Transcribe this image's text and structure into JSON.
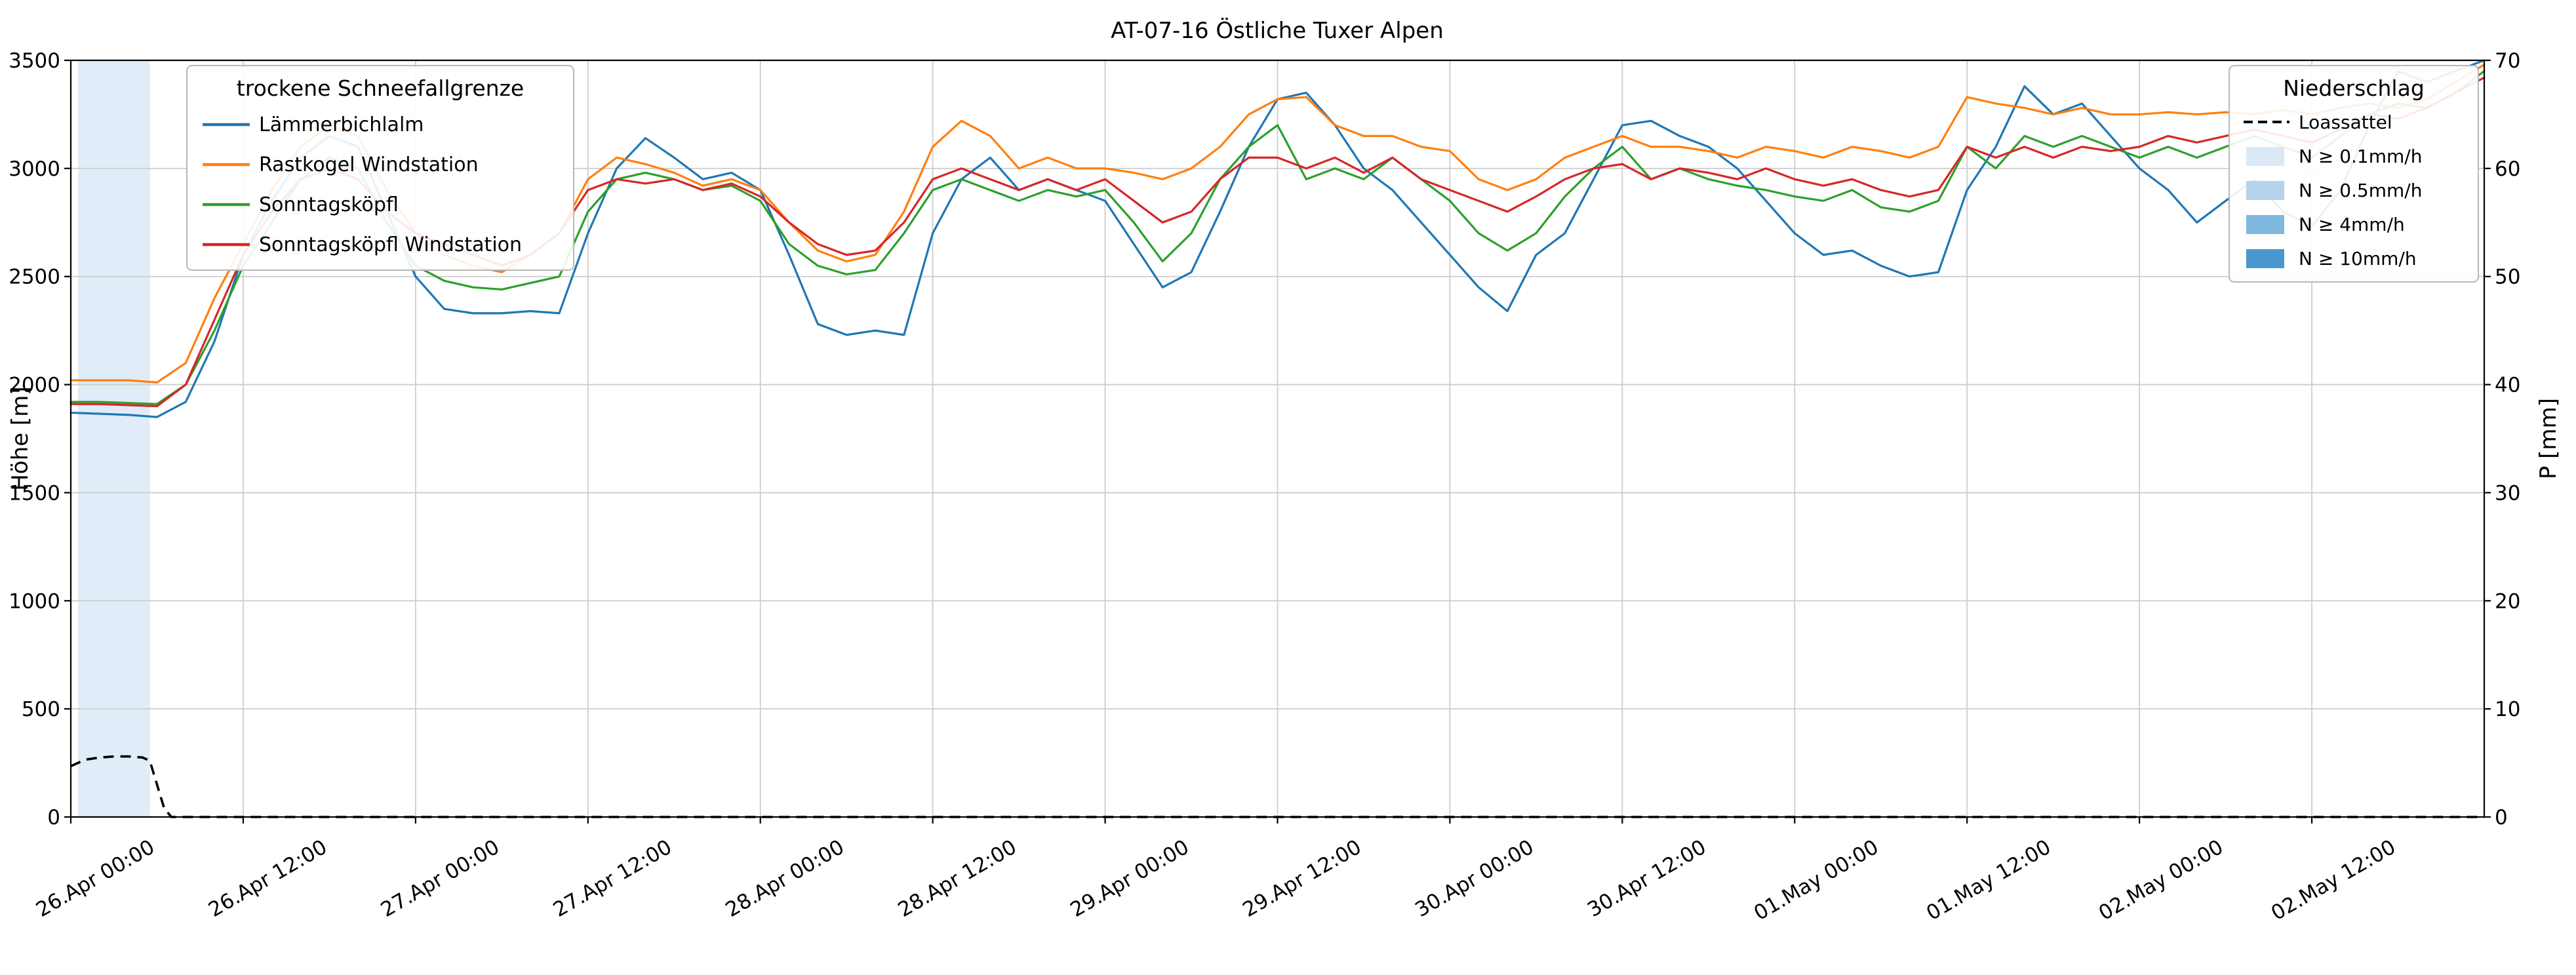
{
  "chart_data": {
    "type": "line",
    "title": "AT-07-16 Östliche Tuxer Alpen",
    "x_unit": "hours since 26.Apr 00:00",
    "x_range": [
      0,
      168
    ],
    "grid": true,
    "x_ticks": [
      {
        "h": 0,
        "label": "26.Apr 00:00"
      },
      {
        "h": 12,
        "label": "26.Apr 12:00"
      },
      {
        "h": 24,
        "label": "27.Apr 00:00"
      },
      {
        "h": 36,
        "label": "27.Apr 12:00"
      },
      {
        "h": 48,
        "label": "28.Apr 00:00"
      },
      {
        "h": 60,
        "label": "28.Apr 12:00"
      },
      {
        "h": 72,
        "label": "29.Apr 00:00"
      },
      {
        "h": 84,
        "label": "29.Apr 12:00"
      },
      {
        "h": 96,
        "label": "30.Apr 00:00"
      },
      {
        "h": 108,
        "label": "30.Apr 12:00"
      },
      {
        "h": 120,
        "label": "01.May 00:00"
      },
      {
        "h": 132,
        "label": "01.May 12:00"
      },
      {
        "h": 144,
        "label": "02.May 00:00"
      },
      {
        "h": 156,
        "label": "02.May 12:00"
      }
    ],
    "y_left": {
      "label": "Höhe [m]",
      "range": [
        0,
        3500
      ],
      "ticks": [
        0,
        500,
        1000,
        1500,
        2000,
        2500,
        3000,
        3500
      ]
    },
    "y_right": {
      "label": "P [mm]",
      "range": [
        0,
        70
      ],
      "ticks": [
        0,
        10,
        20,
        30,
        40,
        50,
        60,
        70
      ]
    },
    "series": [
      {
        "name": "Lämmerbichlalm",
        "color": "#1f77b4",
        "axis": "left",
        "h_start": 0,
        "h_step": 2,
        "values": [
          1870,
          1865,
          1860,
          1850,
          1920,
          2200,
          2600,
          2850,
          3050,
          3150,
          3100,
          2800,
          2500,
          2350,
          2330,
          2330,
          2340,
          2330,
          2700,
          3000,
          3140,
          3050,
          2950,
          2980,
          2900,
          2600,
          2280,
          2230,
          2250,
          2230,
          2700,
          2950,
          3050,
          2900,
          2950,
          2900,
          2850,
          2650,
          2450,
          2520,
          2800,
          3100,
          3320,
          3350,
          3200,
          3000,
          2900,
          2750,
          2600,
          2450,
          2340,
          2600,
          2700,
          2950,
          3200,
          3220,
          3150,
          3100,
          3000,
          2850,
          2700,
          2600,
          2620,
          2550,
          2500,
          2520,
          2900,
          3100,
          3380,
          3250,
          3300,
          3150,
          3000,
          2900,
          2750,
          2850,
          2950,
          2800,
          2730,
          2900,
          3200,
          3450,
          3400,
          3450,
          3500
        ]
      },
      {
        "name": "Rastkogel Windstation",
        "color": "#ff7f0e",
        "axis": "left",
        "h_start": 0,
        "h_step": 2,
        "values": [
          2020,
          2020,
          2020,
          2010,
          2100,
          2400,
          2650,
          2900,
          3100,
          3200,
          3150,
          2900,
          2700,
          2600,
          2550,
          2520,
          2600,
          2700,
          2950,
          3050,
          3020,
          2980,
          2920,
          2950,
          2900,
          2750,
          2620,
          2570,
          2600,
          2800,
          3100,
          3220,
          3150,
          3000,
          3050,
          3000,
          3000,
          2980,
          2950,
          3000,
          3100,
          3250,
          3320,
          3330,
          3200,
          3150,
          3150,
          3100,
          3080,
          2950,
          2900,
          2950,
          3050,
          3100,
          3150,
          3100,
          3100,
          3080,
          3050,
          3100,
          3080,
          3050,
          3100,
          3080,
          3050,
          3100,
          3330,
          3300,
          3280,
          3250,
          3280,
          3250,
          3250,
          3260,
          3250,
          3260,
          3250,
          3270,
          3250,
          3280,
          3300,
          3280,
          3320,
          3400,
          3480
        ]
      },
      {
        "name": "Sonntagsköpfl",
        "color": "#2ca02c",
        "axis": "left",
        "h_start": 0,
        "h_step": 2,
        "values": [
          1920,
          1920,
          1915,
          1910,
          2000,
          2250,
          2550,
          2750,
          2950,
          3050,
          3000,
          2750,
          2550,
          2480,
          2450,
          2440,
          2470,
          2500,
          2800,
          2950,
          2980,
          2950,
          2900,
          2920,
          2850,
          2650,
          2550,
          2510,
          2530,
          2700,
          2900,
          2950,
          2900,
          2850,
          2900,
          2870,
          2900,
          2750,
          2570,
          2700,
          2950,
          3100,
          3200,
          2950,
          3000,
          2950,
          3050,
          2950,
          2850,
          2700,
          2620,
          2700,
          2870,
          3000,
          3100,
          2950,
          3000,
          2950,
          2920,
          2900,
          2870,
          2850,
          2900,
          2820,
          2800,
          2850,
          3100,
          3000,
          3150,
          3100,
          3150,
          3100,
          3050,
          3100,
          3050,
          3100,
          3150,
          3100,
          3050,
          3150,
          3250,
          3300,
          3280,
          3350,
          3450
        ]
      },
      {
        "name": "Sonntagsköpfl Windstation",
        "color": "#d62728",
        "axis": "left",
        "h_start": 0,
        "h_step": 2,
        "values": [
          1910,
          1910,
          1905,
          1900,
          2000,
          2300,
          2600,
          2800,
          2950,
          3000,
          2950,
          2800,
          2700,
          2650,
          2600,
          2550,
          2600,
          2700,
          2900,
          2950,
          2930,
          2950,
          2900,
          2930,
          2870,
          2750,
          2650,
          2600,
          2620,
          2750,
          2950,
          3000,
          2950,
          2900,
          2950,
          2900,
          2950,
          2850,
          2750,
          2800,
          2950,
          3050,
          3050,
          3000,
          3050,
          2980,
          3050,
          2950,
          2900,
          2850,
          2800,
          2870,
          2950,
          3000,
          3020,
          2950,
          3000,
          2980,
          2950,
          3000,
          2950,
          2920,
          2950,
          2900,
          2870,
          2900,
          3100,
          3050,
          3100,
          3050,
          3100,
          3080,
          3100,
          3150,
          3120,
          3150,
          3180,
          3150,
          3120,
          3180,
          3250,
          3230,
          3280,
          3350,
          3420
        ]
      }
    ],
    "precip_series": {
      "name": "Loassattel",
      "color": "#000000",
      "style": "dashed",
      "axis": "right",
      "points": [
        [
          0,
          4.7
        ],
        [
          1,
          5.3
        ],
        [
          2,
          5.5
        ],
        [
          3,
          5.6
        ],
        [
          4,
          5.6
        ],
        [
          5,
          5.5
        ],
        [
          5.5,
          5.2
        ],
        [
          6,
          3.0
        ],
        [
          6.5,
          0.8
        ],
        [
          7,
          0
        ],
        [
          24,
          0
        ],
        [
          48,
          0
        ],
        [
          72,
          0
        ],
        [
          96,
          0
        ],
        [
          120,
          0
        ],
        [
          144,
          0
        ],
        [
          168,
          0
        ]
      ]
    },
    "precip_bands": [
      {
        "from_h": 0.5,
        "to_h": 5.5,
        "level": "N ≥ 0.1mm/h",
        "color": "#dbe9f6"
      }
    ],
    "legends": {
      "snowline": {
        "title": "trockene Schneefallgrenze",
        "entries": [
          {
            "label": "Lämmerbichlalm",
            "color": "#1f77b4"
          },
          {
            "label": "Rastkogel Windstation",
            "color": "#ff7f0e"
          },
          {
            "label": "Sonntagsköpfl",
            "color": "#2ca02c"
          },
          {
            "label": "Sonntagsköpfl Windstation",
            "color": "#d62728"
          }
        ]
      },
      "precip": {
        "title": "Niederschlag",
        "entries": [
          {
            "label": "Loassattel",
            "type": "dashed-line",
            "color": "#000000"
          },
          {
            "label": "N ≥ 0.1mm/h",
            "type": "patch",
            "color": "#dbe9f6"
          },
          {
            "label": "N ≥ 0.5mm/h",
            "type": "patch",
            "color": "#b3d3ec"
          },
          {
            "label": "N ≥ 4mm/h",
            "type": "patch",
            "color": "#7eb8de"
          },
          {
            "label": "N ≥ 10mm/h",
            "type": "patch",
            "color": "#4897ce"
          }
        ]
      }
    }
  }
}
